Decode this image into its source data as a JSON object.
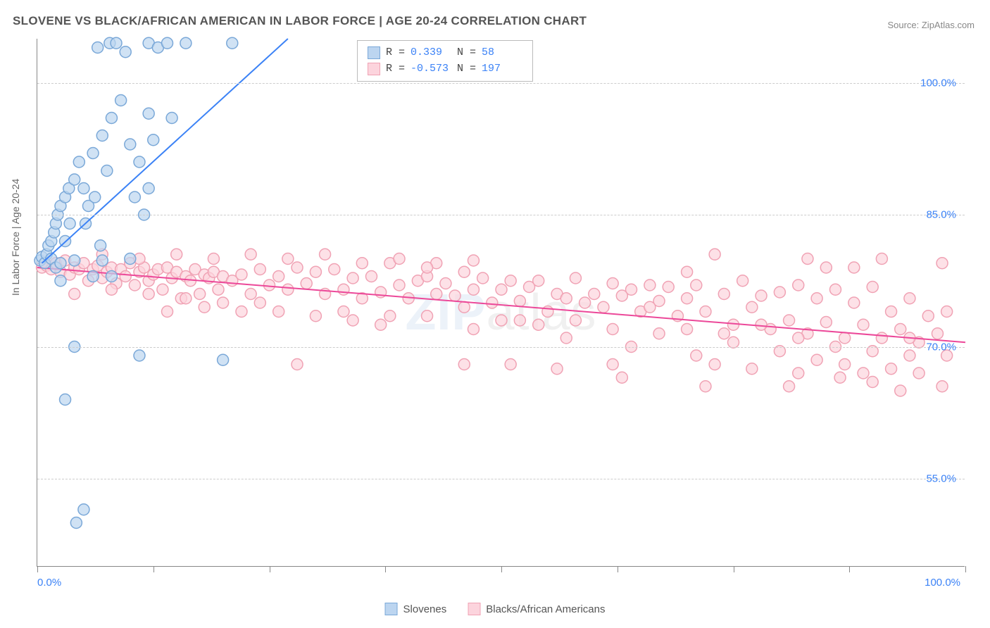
{
  "title": "SLOVENE VS BLACK/AFRICAN AMERICAN IN LABOR FORCE | AGE 20-24 CORRELATION CHART",
  "source": "Source: ZipAtlas.com",
  "y_axis_label": "In Labor Force | Age 20-24",
  "watermark_a": "ZIP",
  "watermark_b": "atlas",
  "chart": {
    "type": "scatter",
    "background_color": "#ffffff",
    "grid_color": "#cccccc",
    "axis_color": "#888888",
    "tick_label_color": "#3b82f6",
    "xlim": [
      0,
      100
    ],
    "ylim": [
      45,
      105
    ],
    "y_ticks": [
      55.0,
      70.0,
      85.0,
      100.0
    ],
    "y_tick_labels": [
      "55.0%",
      "70.0%",
      "85.0%",
      "100.0%"
    ],
    "x_ticks": [
      0,
      12.5,
      25,
      37.5,
      50,
      62.5,
      75,
      87.5,
      100
    ],
    "x_tick_labels": {
      "0": "0.0%",
      "100": "100.0%"
    },
    "marker_radius": 8,
    "marker_stroke_width": 1.5,
    "line_width": 2,
    "series": {
      "slovenes": {
        "label": "Slovenes",
        "fill": "#bcd5f0",
        "stroke": "#7aa8d8",
        "line_color": "#3b82f6",
        "R": "0.339",
        "N": "58",
        "trend": {
          "x1": 0.5,
          "y1": 79.5,
          "x2": 27,
          "y2": 105
        },
        "points": [
          [
            0.3,
            79.8
          ],
          [
            0.5,
            80.2
          ],
          [
            0.8,
            79.5
          ],
          [
            1,
            80.5
          ],
          [
            1.2,
            81.5
          ],
          [
            1.5,
            82
          ],
          [
            1.5,
            80
          ],
          [
            1.8,
            83
          ],
          [
            2,
            84
          ],
          [
            2,
            79
          ],
          [
            2.2,
            85
          ],
          [
            2.5,
            86
          ],
          [
            2.5,
            79.5
          ],
          [
            3,
            87
          ],
          [
            3,
            82
          ],
          [
            3.4,
            88
          ],
          [
            3.5,
            84
          ],
          [
            4,
            89
          ],
          [
            4,
            79.8
          ],
          [
            4.5,
            91
          ],
          [
            5,
            88
          ],
          [
            5.2,
            84
          ],
          [
            5.5,
            86
          ],
          [
            4,
            70
          ],
          [
            6,
            92
          ],
          [
            6.2,
            87
          ],
          [
            6.5,
            104
          ],
          [
            7,
            94
          ],
          [
            7.5,
            90
          ],
          [
            7.8,
            104.5
          ],
          [
            8,
            96
          ],
          [
            8.5,
            104.5
          ],
          [
            9,
            98
          ],
          [
            9.5,
            103.5
          ],
          [
            10,
            93
          ],
          [
            10.5,
            87
          ],
          [
            11,
            91
          ],
          [
            11.5,
            85
          ],
          [
            12,
            104.5
          ],
          [
            12,
            96.5
          ],
          [
            12.5,
            93.5
          ],
          [
            13,
            104
          ],
          [
            14,
            104.5
          ],
          [
            14.5,
            96
          ],
          [
            16,
            104.5
          ],
          [
            12,
            88
          ],
          [
            8,
            78
          ],
          [
            7,
            79.8
          ],
          [
            3,
            64
          ],
          [
            4.2,
            50
          ],
          [
            5,
            51.5
          ],
          [
            2.5,
            77.5
          ],
          [
            20,
            68.5
          ],
          [
            21,
            104.5
          ],
          [
            11,
            69
          ],
          [
            6,
            78
          ],
          [
            6.8,
            81.5
          ],
          [
            10,
            80
          ]
        ]
      },
      "baa": {
        "label": "Blacks/African Americans",
        "fill": "#fcd4dd",
        "stroke": "#f0a2b4",
        "line_color": "#ec4899",
        "R": "-0.573",
        "N": "197",
        "trend": {
          "x1": 0,
          "y1": 79,
          "x2": 100,
          "y2": 70.5
        },
        "points": [
          [
            0.5,
            79
          ],
          [
            1,
            79.2
          ],
          [
            1.5,
            78.8
          ],
          [
            2,
            79.5
          ],
          [
            2.5,
            78.5
          ],
          [
            3,
            79.8
          ],
          [
            3.5,
            78.2
          ],
          [
            4,
            79
          ],
          [
            4.5,
            78.8
          ],
          [
            5,
            79.5
          ],
          [
            5.5,
            77.5
          ],
          [
            6,
            78.8
          ],
          [
            6.5,
            79.2
          ],
          [
            7,
            77.8
          ],
          [
            7.5,
            78.5
          ],
          [
            8,
            79
          ],
          [
            8.5,
            77.2
          ],
          [
            9,
            78.8
          ],
          [
            9.5,
            78
          ],
          [
            10,
            79.5
          ],
          [
            10.5,
            77
          ],
          [
            11,
            78.5
          ],
          [
            11.5,
            79
          ],
          [
            12,
            77.5
          ],
          [
            12.5,
            78.2
          ],
          [
            13,
            78.8
          ],
          [
            13.5,
            76.5
          ],
          [
            14,
            79
          ],
          [
            14.5,
            77.8
          ],
          [
            15,
            78.5
          ],
          [
            15.5,
            75.5
          ],
          [
            16,
            78
          ],
          [
            16.5,
            77.5
          ],
          [
            17,
            78.8
          ],
          [
            17.5,
            76
          ],
          [
            18,
            78.2
          ],
          [
            18.5,
            77.8
          ],
          [
            19,
            78.5
          ],
          [
            19.5,
            76.5
          ],
          [
            20,
            78
          ],
          [
            21,
            77.5
          ],
          [
            22,
            78.2
          ],
          [
            23,
            76
          ],
          [
            24,
            78.8
          ],
          [
            25,
            77
          ],
          [
            26,
            78
          ],
          [
            27,
            76.5
          ],
          [
            28,
            79
          ],
          [
            29,
            77.2
          ],
          [
            30,
            78.5
          ],
          [
            31,
            76
          ],
          [
            32,
            78.8
          ],
          [
            33,
            76.5
          ],
          [
            34,
            77.8
          ],
          [
            35,
            75.5
          ],
          [
            36,
            78
          ],
          [
            37,
            76.2
          ],
          [
            38,
            79.5
          ],
          [
            39,
            77
          ],
          [
            40,
            75.5
          ],
          [
            41,
            77.5
          ],
          [
            42,
            78
          ],
          [
            43,
            76
          ],
          [
            44,
            77.2
          ],
          [
            45,
            75.8
          ],
          [
            46,
            78.5
          ],
          [
            46,
            68
          ],
          [
            47,
            76.5
          ],
          [
            48,
            77.8
          ],
          [
            49,
            75
          ],
          [
            50,
            76.5
          ],
          [
            51,
            68
          ],
          [
            51,
            77.5
          ],
          [
            52,
            75.2
          ],
          [
            53,
            76.8
          ],
          [
            54,
            77.5
          ],
          [
            55,
            74
          ],
          [
            56,
            76
          ],
          [
            57,
            75.5
          ],
          [
            58,
            77.8
          ],
          [
            59,
            75
          ],
          [
            60,
            76
          ],
          [
            61,
            74.5
          ],
          [
            62,
            77.2
          ],
          [
            63,
            75.8
          ],
          [
            64,
            76.5
          ],
          [
            65,
            74
          ],
          [
            66,
            77
          ],
          [
            67,
            75.2
          ],
          [
            68,
            76.8
          ],
          [
            69,
            73.5
          ],
          [
            70,
            75.5
          ],
          [
            71,
            77
          ],
          [
            72,
            74
          ],
          [
            73,
            80.5
          ],
          [
            74,
            76
          ],
          [
            75,
            72.5
          ],
          [
            76,
            77.5
          ],
          [
            77,
            74.5
          ],
          [
            78,
            75.8
          ],
          [
            79,
            72
          ],
          [
            80,
            76.2
          ],
          [
            81,
            73
          ],
          [
            82,
            77
          ],
          [
            83,
            71.5
          ],
          [
            84,
            75.5
          ],
          [
            85,
            72.8
          ],
          [
            86,
            76.5
          ],
          [
            86.5,
            66.5
          ],
          [
            87,
            71
          ],
          [
            88,
            75
          ],
          [
            89,
            72.5
          ],
          [
            90,
            76.8
          ],
          [
            91,
            71
          ],
          [
            92,
            74
          ],
          [
            93,
            72
          ],
          [
            94,
            75.5
          ],
          [
            95,
            70.5
          ],
          [
            96,
            73.5
          ],
          [
            97,
            71.5
          ],
          [
            97.5,
            65.5
          ],
          [
            97.5,
            79.5
          ],
          [
            98,
            74
          ],
          [
            28,
            68
          ],
          [
            33,
            74
          ],
          [
            37,
            72.5
          ],
          [
            42,
            73.5
          ],
          [
            47,
            72
          ],
          [
            52,
            73
          ],
          [
            56,
            67.5
          ],
          [
            57,
            71
          ],
          [
            62,
            68
          ],
          [
            64,
            70
          ],
          [
            63,
            66.5
          ],
          [
            67,
            71.5
          ],
          [
            70,
            78.5
          ],
          [
            71,
            69
          ],
          [
            73,
            68
          ],
          [
            72,
            65.5
          ],
          [
            75,
            70.5
          ],
          [
            77,
            67.5
          ],
          [
            80,
            69.5
          ],
          [
            81,
            65.5
          ],
          [
            82,
            67
          ],
          [
            83,
            80
          ],
          [
            84,
            68.5
          ],
          [
            85,
            79
          ],
          [
            87,
            68
          ],
          [
            89,
            67
          ],
          [
            88,
            79
          ],
          [
            90,
            66
          ],
          [
            91,
            80
          ],
          [
            92,
            67.5
          ],
          [
            93,
            65
          ],
          [
            94,
            69
          ],
          [
            95,
            67
          ],
          [
            4,
            76
          ],
          [
            8,
            76.5
          ],
          [
            12,
            76
          ],
          [
            16,
            75.5
          ],
          [
            20,
            75
          ],
          [
            24,
            75
          ],
          [
            7,
            80.5
          ],
          [
            11,
            80
          ],
          [
            15,
            80.5
          ],
          [
            19,
            80
          ],
          [
            23,
            80.5
          ],
          [
            27,
            80
          ],
          [
            31,
            80.5
          ],
          [
            35,
            79.5
          ],
          [
            39,
            80
          ],
          [
            43,
            79.5
          ],
          [
            47,
            79.8
          ],
          [
            14,
            74
          ],
          [
            18,
            74.5
          ],
          [
            22,
            74
          ],
          [
            26,
            74
          ],
          [
            30,
            73.5
          ],
          [
            34,
            73
          ],
          [
            38,
            73.5
          ],
          [
            42,
            79
          ],
          [
            46,
            74.5
          ],
          [
            50,
            73
          ],
          [
            54,
            72.5
          ],
          [
            58,
            73
          ],
          [
            62,
            72
          ],
          [
            66,
            74.5
          ],
          [
            70,
            72
          ],
          [
            74,
            71.5
          ],
          [
            78,
            72.5
          ],
          [
            82,
            71
          ],
          [
            86,
            70
          ],
          [
            90,
            69.5
          ],
          [
            94,
            71
          ],
          [
            98,
            69
          ]
        ]
      }
    }
  }
}
